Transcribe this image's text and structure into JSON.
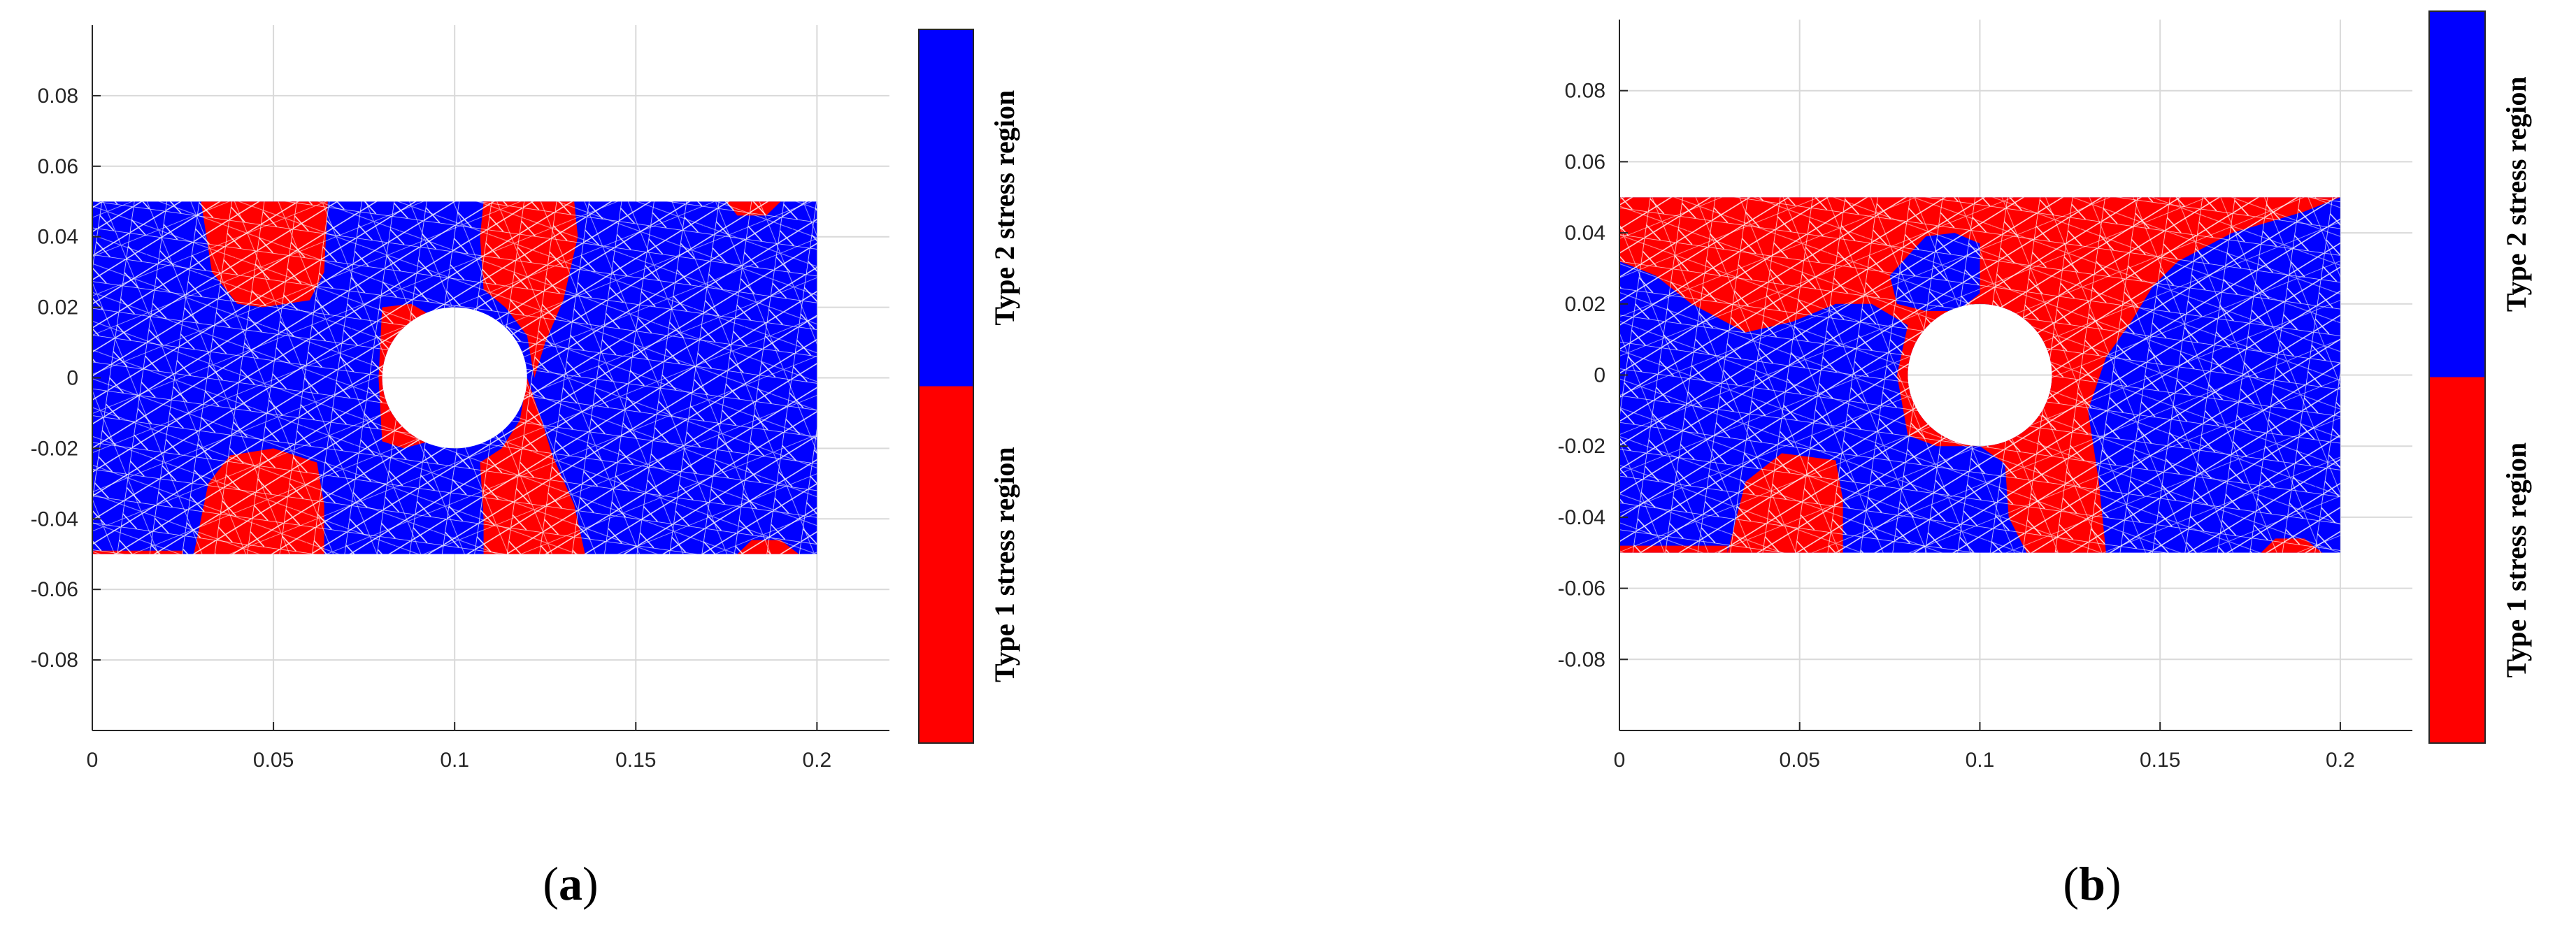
{
  "colors": {
    "type1": "#ff0000",
    "type2": "#0000ff",
    "mesh": "#ffffff",
    "grid": "#d9d9d9",
    "axis": "#262626"
  },
  "chart_data": [
    {
      "type": "heatmap",
      "panel_label": "a",
      "x_ticks": [
        "0",
        "0.05",
        "0.1",
        "0.15",
        "0.2"
      ],
      "y_ticks": [
        "0.08",
        "0.06",
        "0.04",
        "0.02",
        "0",
        "-0.02",
        "-0.04",
        "-0.06",
        "-0.08"
      ],
      "xlim": [
        0,
        0.22
      ],
      "ylim": [
        -0.1,
        0.1
      ],
      "grid": true,
      "domain": {
        "x": [
          0,
          0.2
        ],
        "y": [
          -0.05,
          0.05
        ],
        "hole_center": [
          0.1,
          0
        ],
        "hole_radius": 0.02
      },
      "colorbar": {
        "top_label": "Type 2 stress region",
        "bottom_label": "Type 1 stress region",
        "split_fraction": 0.5
      },
      "regions": [
        {
          "type": "Type 1 stress region",
          "points": [
            [
              0.03,
              0.05
            ],
            [
              0.065,
              0.05
            ],
            [
              0.064,
              0.03
            ],
            [
              0.06,
              0.022
            ],
            [
              0.047,
              0.02
            ],
            [
              0.04,
              0.021
            ],
            [
              0.033,
              0.03
            ]
          ]
        },
        {
          "type": "Type 1 stress region",
          "points": [
            [
              0.028,
              -0.05
            ],
            [
              0.064,
              -0.05
            ],
            [
              0.064,
              -0.036
            ],
            [
              0.062,
              -0.024
            ],
            [
              0.05,
              -0.02
            ],
            [
              0.038,
              -0.022
            ],
            [
              0.032,
              -0.03
            ]
          ]
        },
        {
          "type": "Type 1 stress region",
          "points": [
            [
              0.108,
              0.05
            ],
            [
              0.133,
              0.05
            ],
            [
              0.134,
              0.04
            ],
            [
              0.13,
              0.022
            ],
            [
              0.125,
              0.01
            ],
            [
              0.122,
              0.0
            ],
            [
              0.12,
              0.012
            ],
            [
              0.114,
              0.02
            ],
            [
              0.108,
              0.025
            ],
            [
              0.107,
              0.04
            ]
          ]
        },
        {
          "type": "Type 1 stress region",
          "points": [
            [
              0.108,
              -0.05
            ],
            [
              0.136,
              -0.05
            ],
            [
              0.133,
              -0.036
            ],
            [
              0.127,
              -0.022
            ],
            [
              0.124,
              -0.012
            ],
            [
              0.12,
              0.0
            ],
            [
              0.118,
              -0.012
            ],
            [
              0.113,
              -0.02
            ],
            [
              0.107,
              -0.024
            ],
            [
              0.108,
              -0.04
            ]
          ]
        },
        {
          "type": "Type 1 stress region",
          "points": [
            [
              0.08,
              0.02
            ],
            [
              0.088,
              0.021
            ],
            [
              0.093,
              0.018
            ],
            [
              0.089,
              0.0
            ],
            [
              0.093,
              -0.018
            ],
            [
              0.086,
              -0.02
            ],
            [
              0.08,
              -0.018
            ],
            [
              0.079,
              0.0
            ]
          ]
        },
        {
          "type": "Type 1 stress region",
          "points": [
            [
              0.175,
              0.05
            ],
            [
              0.19,
              0.05
            ],
            [
              0.186,
              0.046
            ],
            [
              0.178,
              0.046
            ]
          ]
        },
        {
          "type": "Type 1 stress region",
          "points": [
            [
              0.178,
              -0.05
            ],
            [
              0.195,
              -0.05
            ],
            [
              0.19,
              -0.046
            ],
            [
              0.182,
              -0.046
            ]
          ]
        },
        {
          "type": "Type 1 stress region",
          "points": [
            [
              0.0,
              -0.049
            ],
            [
              0.025,
              -0.049
            ],
            [
              0.025,
              -0.05
            ],
            [
              0.0,
              -0.05
            ]
          ]
        }
      ]
    },
    {
      "type": "heatmap",
      "panel_label": "b",
      "x_ticks": [
        "0",
        "0.05",
        "0.1",
        "0.15",
        "0.2"
      ],
      "y_ticks": [
        "0.08",
        "0.06",
        "0.04",
        "0.02",
        "0",
        "-0.02",
        "-0.04",
        "-0.06",
        "-0.08"
      ],
      "xlim": [
        0,
        0.22
      ],
      "ylim": [
        -0.1,
        0.1
      ],
      "grid": true,
      "domain": {
        "x": [
          0,
          0.2
        ],
        "y": [
          -0.05,
          0.05
        ],
        "hole_center": [
          0.1,
          0
        ],
        "hole_radius": 0.02
      },
      "colorbar": {
        "top_label": "Type 2 stress region",
        "bottom_label": "Type 1 stress region",
        "split_fraction": 0.5
      },
      "regions": [
        {
          "type": "Type 1 stress region",
          "points": [
            [
              0.0,
              0.05
            ],
            [
              0.2,
              0.05
            ],
            [
              0.19,
              0.046
            ],
            [
              0.17,
              0.04
            ],
            [
              0.155,
              0.032
            ],
            [
              0.148,
              0.025
            ],
            [
              0.142,
              0.015
            ],
            [
              0.135,
              0.005
            ],
            [
              0.13,
              -0.01
            ],
            [
              0.133,
              -0.03
            ],
            [
              0.135,
              -0.05
            ],
            [
              0.113,
              -0.05
            ],
            [
              0.108,
              -0.04
            ],
            [
              0.107,
              -0.025
            ],
            [
              0.1,
              -0.02
            ],
            [
              0.088,
              -0.02
            ],
            [
              0.08,
              -0.017
            ],
            [
              0.077,
              0.0
            ],
            [
              0.08,
              0.014
            ],
            [
              0.07,
              0.02
            ],
            [
              0.06,
              0.02
            ],
            [
              0.048,
              0.015
            ],
            [
              0.035,
              0.012
            ],
            [
              0.02,
              0.02
            ],
            [
              0.01,
              0.028
            ],
            [
              0.0,
              0.032
            ]
          ]
        },
        {
          "type": "Type 2 stress region",
          "points": [
            [
              0.075,
              0.028
            ],
            [
              0.085,
              0.039
            ],
            [
              0.093,
              0.04
            ],
            [
              0.1,
              0.037
            ],
            [
              0.1,
              0.023
            ],
            [
              0.094,
              0.018
            ],
            [
              0.085,
              0.018
            ],
            [
              0.077,
              0.02
            ]
          ]
        },
        {
          "type": "Type 1 stress region",
          "points": [
            [
              0.03,
              -0.05
            ],
            [
              0.062,
              -0.05
            ],
            [
              0.062,
              -0.035
            ],
            [
              0.06,
              -0.024
            ],
            [
              0.045,
              -0.022
            ],
            [
              0.035,
              -0.03
            ]
          ]
        },
        {
          "type": "Type 1 stress region",
          "points": [
            [
              0.0,
              -0.048
            ],
            [
              0.03,
              -0.048
            ],
            [
              0.03,
              -0.05
            ],
            [
              0.0,
              -0.05
            ]
          ]
        },
        {
          "type": "Type 1 stress region",
          "points": [
            [
              0.178,
              -0.05
            ],
            [
              0.195,
              -0.05
            ],
            [
              0.19,
              -0.046
            ],
            [
              0.182,
              -0.046
            ]
          ]
        }
      ]
    }
  ]
}
